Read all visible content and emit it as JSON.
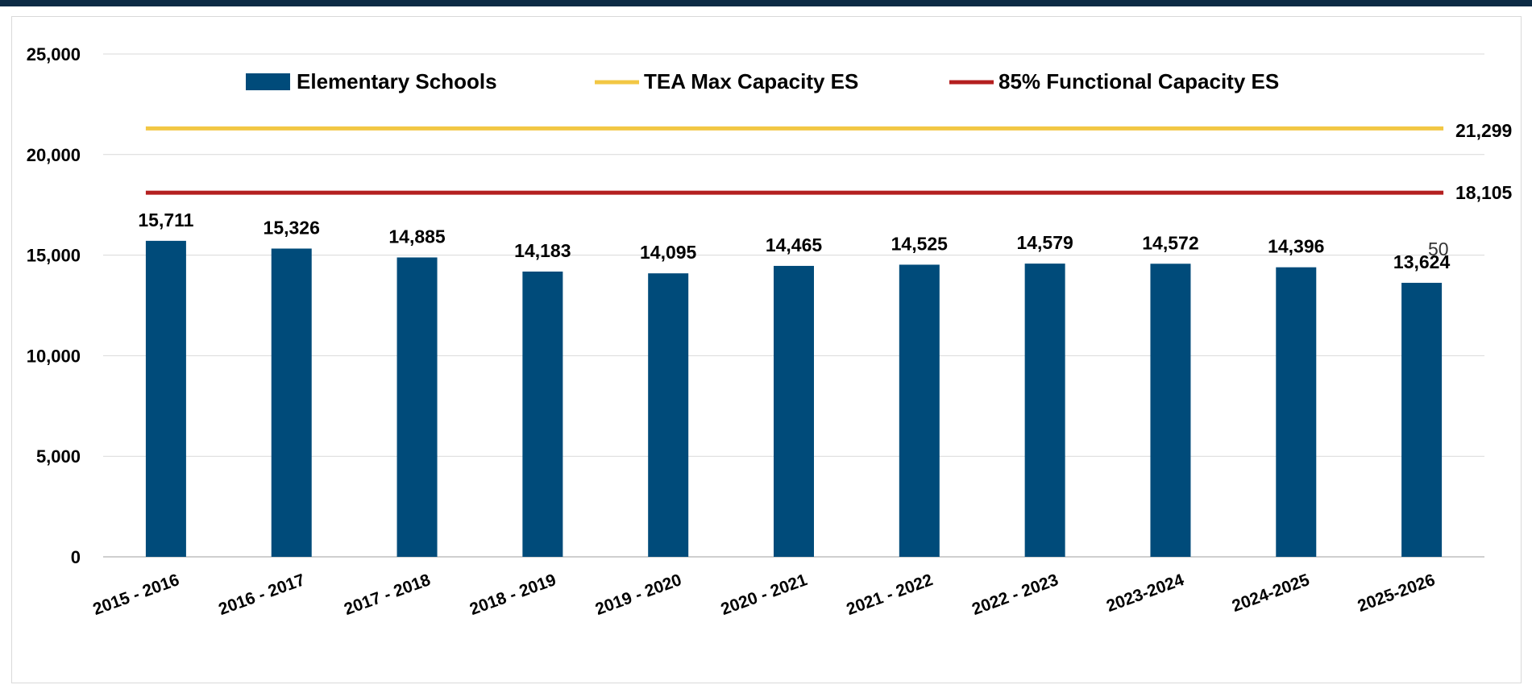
{
  "chart_data": {
    "type": "bar",
    "categories": [
      "2015 - 2016",
      "2016 - 2017",
      "2017 - 2018",
      "2018 - 2019",
      "2019 - 2020",
      "2020 - 2021",
      "2021 - 2022",
      "2022 - 2023",
      "2023-2024",
      "2024-2025",
      "2025-2026"
    ],
    "series": [
      {
        "name": "Elementary Schools",
        "type": "bar",
        "color": "#004b7a",
        "values": [
          15711,
          15326,
          14885,
          14183,
          14095,
          14465,
          14525,
          14579,
          14572,
          14396,
          13624
        ],
        "labels": [
          "15,711",
          "15,326",
          "14,885",
          "14,183",
          "14,095",
          "14,465",
          "14,525",
          "14,579",
          "14,572",
          "14,396",
          "13,624"
        ]
      },
      {
        "name": "TEA Max Capacity ES",
        "type": "line",
        "color": "#f2c744",
        "values": [
          21299,
          21299,
          21299,
          21299,
          21299,
          21299,
          21299,
          21299,
          21299,
          21299,
          21299
        ],
        "end_label": "21,299"
      },
      {
        "name": "85% Functional Capacity ES",
        "type": "line",
        "color": "#b41f1f",
        "values": [
          18105,
          18105,
          18105,
          18105,
          18105,
          18105,
          18105,
          18105,
          18105,
          18105,
          18105
        ],
        "end_label": "18,105"
      }
    ],
    "ylim": [
      0,
      25000
    ],
    "yticks": [
      0,
      5000,
      10000,
      15000,
      20000,
      25000
    ],
    "ytick_labels": [
      "0",
      "5,000",
      "10,000",
      "15,000",
      "20,000",
      "25,000"
    ],
    "grid": true,
    "legend_position": "top",
    "stray_annotation": "50",
    "title": "",
    "xlabel": "",
    "ylabel": ""
  }
}
